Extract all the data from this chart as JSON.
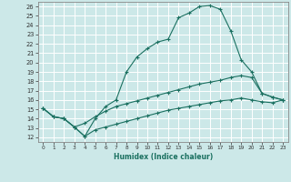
{
  "xlabel": "Humidex (Indice chaleur)",
  "ylabel": "",
  "xlim": [
    -0.5,
    23.5
  ],
  "ylim": [
    11.5,
    26.5
  ],
  "xticks": [
    0,
    1,
    2,
    3,
    4,
    5,
    6,
    7,
    8,
    9,
    10,
    11,
    12,
    13,
    14,
    15,
    16,
    17,
    18,
    19,
    20,
    21,
    22,
    23
  ],
  "yticks": [
    12,
    13,
    14,
    15,
    16,
    17,
    18,
    19,
    20,
    21,
    22,
    23,
    24,
    25,
    26
  ],
  "bg_color": "#cce8e8",
  "line_color": "#1a7060",
  "grid_color": "#ffffff",
  "line1_x": [
    0,
    1,
    2,
    3,
    4,
    5,
    6,
    7,
    8,
    9,
    10,
    11,
    12,
    13,
    14,
    15,
    16,
    17,
    18,
    19,
    20,
    21,
    22,
    23
  ],
  "line1_y": [
    15.1,
    14.2,
    14.0,
    13.1,
    12.1,
    14.0,
    15.3,
    16.0,
    19.0,
    20.6,
    21.5,
    22.2,
    22.5,
    24.8,
    25.3,
    26.0,
    26.1,
    25.7,
    23.4,
    20.3,
    19.0,
    16.7,
    16.3,
    16.0
  ],
  "line2_x": [
    0,
    1,
    2,
    3,
    4,
    5,
    6,
    7,
    8,
    9,
    10,
    11,
    12,
    13,
    14,
    15,
    16,
    17,
    18,
    19,
    20,
    21,
    22,
    23
  ],
  "line2_y": [
    15.1,
    14.2,
    14.0,
    13.1,
    13.5,
    14.2,
    14.8,
    15.3,
    15.6,
    15.9,
    16.2,
    16.5,
    16.8,
    17.1,
    17.4,
    17.7,
    17.9,
    18.1,
    18.4,
    18.6,
    18.4,
    16.7,
    16.3,
    16.0
  ],
  "line3_x": [
    0,
    1,
    2,
    3,
    4,
    5,
    6,
    7,
    8,
    9,
    10,
    11,
    12,
    13,
    14,
    15,
    16,
    17,
    18,
    19,
    20,
    21,
    22,
    23
  ],
  "line3_y": [
    15.1,
    14.2,
    14.0,
    13.1,
    12.1,
    12.8,
    13.1,
    13.4,
    13.7,
    14.0,
    14.3,
    14.6,
    14.9,
    15.1,
    15.3,
    15.5,
    15.7,
    15.9,
    16.0,
    16.2,
    16.0,
    15.8,
    15.7,
    16.0
  ]
}
